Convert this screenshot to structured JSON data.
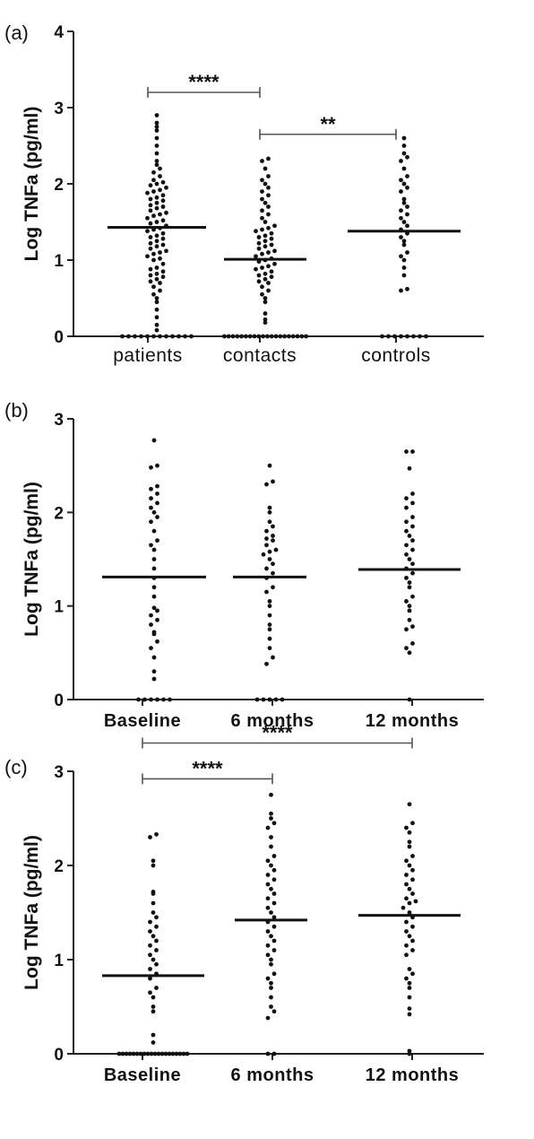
{
  "chart_data": [
    {
      "panel_label": "(a)",
      "type": "scatter",
      "subtype": "dot-plot with median lines",
      "ylabel": "Log TNFa (pg/ml)",
      "xlabel": "",
      "ylim": [
        0,
        4
      ],
      "yticks": [
        "0",
        "1",
        "2",
        "3",
        "4"
      ],
      "categories": [
        "patients",
        "contacts",
        "controls"
      ],
      "medians": [
        1.43,
        1.01,
        1.38
      ],
      "series": [
        {
          "values": [
            0,
            0,
            0,
            0,
            0,
            0,
            0,
            0,
            0,
            0,
            0,
            0,
            0.08,
            0.15,
            0.25,
            0.35,
            0.45,
            0.5,
            0.55,
            0.6,
            0.65,
            0.7,
            0.72,
            0.75,
            0.78,
            0.8,
            0.82,
            0.85,
            0.88,
            0.9,
            0.95,
            1.0,
            1.02,
            1.05,
            1.08,
            1.1,
            1.12,
            1.15,
            1.18,
            1.2,
            1.22,
            1.25,
            1.28,
            1.3,
            1.32,
            1.35,
            1.38,
            1.4,
            1.42,
            1.45,
            1.48,
            1.5,
            1.52,
            1.55,
            1.58,
            1.6,
            1.62,
            1.65,
            1.68,
            1.7,
            1.72,
            1.75,
            1.78,
            1.8,
            1.82,
            1.85,
            1.88,
            1.9,
            1.92,
            1.95,
            1.98,
            2.0,
            2.02,
            2.05,
            2.1,
            2.15,
            2.2,
            2.25,
            2.3,
            2.4,
            2.5,
            2.6,
            2.7,
            2.75,
            2.8,
            2.9
          ]
        },
        {
          "values": [
            0,
            0,
            0,
            0,
            0,
            0,
            0,
            0,
            0,
            0,
            0,
            0,
            0,
            0,
            0,
            0,
            0,
            0,
            0,
            0,
            0.18,
            0.22,
            0.3,
            0.45,
            0.5,
            0.55,
            0.6,
            0.65,
            0.7,
            0.72,
            0.75,
            0.78,
            0.8,
            0.82,
            0.85,
            0.88,
            0.9,
            0.92,
            0.95,
            0.98,
            1.0,
            1.02,
            1.05,
            1.08,
            1.1,
            1.12,
            1.15,
            1.18,
            1.2,
            1.22,
            1.25,
            1.28,
            1.3,
            1.32,
            1.35,
            1.38,
            1.4,
            1.42,
            1.45,
            1.5,
            1.55,
            1.6,
            1.65,
            1.7,
            1.75,
            1.8,
            1.85,
            1.9,
            1.95,
            2.0,
            2.05,
            2.1,
            2.2,
            2.3,
            2.33
          ]
        },
        {
          "values": [
            0,
            0,
            0,
            0,
            0,
            0,
            0,
            0,
            0.6,
            0.62,
            0.8,
            0.9,
            1.0,
            1.05,
            1.1,
            1.2,
            1.25,
            1.3,
            1.35,
            1.4,
            1.45,
            1.5,
            1.55,
            1.6,
            1.65,
            1.7,
            1.75,
            1.8,
            1.9,
            1.95,
            2.0,
            2.05,
            2.1,
            2.2,
            2.3,
            2.35,
            2.4,
            2.5,
            2.6
          ]
        }
      ],
      "significance": [
        {
          "from": 0,
          "to": 1,
          "label": "****",
          "y": 3.2
        },
        {
          "from": 1,
          "to": 2,
          "label": "**",
          "y": 2.65
        }
      ]
    },
    {
      "panel_label": "(b)",
      "type": "scatter",
      "subtype": "dot-plot with median lines",
      "ylabel": "Log TNFa (pg/ml)",
      "xlabel": "",
      "ylim": [
        0,
        3
      ],
      "yticks": [
        "0",
        "1",
        "2",
        "3"
      ],
      "categories": [
        "Baseline",
        "6 months",
        "12 months"
      ],
      "medians": [
        1.31,
        1.31,
        1.39
      ],
      "series": [
        {
          "values": [
            0,
            0,
            0,
            0,
            0,
            0,
            0.22,
            0.3,
            0.45,
            0.55,
            0.62,
            0.7,
            0.72,
            0.8,
            0.85,
            0.9,
            0.95,
            0.98,
            1.1,
            1.2,
            1.3,
            1.4,
            1.5,
            1.6,
            1.65,
            1.7,
            1.8,
            1.9,
            1.95,
            2.0,
            2.05,
            2.1,
            2.15,
            2.2,
            2.25,
            2.28,
            2.48,
            2.5,
            2.77
          ]
        },
        {
          "values": [
            0,
            0,
            0,
            0,
            0,
            0.38,
            0.45,
            0.55,
            0.65,
            0.75,
            0.8,
            0.9,
            1.0,
            1.05,
            1.15,
            1.2,
            1.3,
            1.35,
            1.4,
            1.45,
            1.5,
            1.55,
            1.58,
            1.6,
            1.65,
            1.7,
            1.72,
            1.75,
            1.8,
            1.85,
            1.9,
            2.0,
            2.05,
            2.3,
            2.33,
            2.5
          ]
        },
        {
          "values": [
            0,
            0.5,
            0.55,
            0.6,
            0.75,
            0.78,
            0.85,
            0.95,
            1.0,
            1.05,
            1.1,
            1.2,
            1.25,
            1.3,
            1.35,
            1.4,
            1.45,
            1.5,
            1.55,
            1.6,
            1.65,
            1.7,
            1.75,
            1.8,
            1.85,
            1.9,
            1.95,
            2.05,
            2.1,
            2.15,
            2.2,
            2.47,
            2.65,
            2.65
          ]
        }
      ],
      "significance": []
    },
    {
      "panel_label": "(c)",
      "type": "scatter",
      "subtype": "dot-plot with median lines",
      "ylabel": "Log TNFa (pg/ml)",
      "xlabel": "",
      "ylim": [
        0,
        3
      ],
      "yticks": [
        "0",
        "1",
        "2",
        "3"
      ],
      "categories": [
        "Baseline",
        "6 months",
        "12 months"
      ],
      "medians": [
        0.83,
        1.42,
        1.47
      ],
      "series": [
        {
          "values": [
            0,
            0,
            0,
            0,
            0,
            0,
            0,
            0,
            0,
            0,
            0,
            0,
            0,
            0,
            0,
            0,
            0,
            0,
            0,
            0,
            0.12,
            0.2,
            0.45,
            0.5,
            0.6,
            0.65,
            0.7,
            0.8,
            0.85,
            0.9,
            0.95,
            1.0,
            1.05,
            1.1,
            1.15,
            1.2,
            1.25,
            1.3,
            1.35,
            1.4,
            1.45,
            1.5,
            1.6,
            1.7,
            1.72,
            2.0,
            2.05,
            2.3,
            2.33
          ]
        },
        {
          "values": [
            0,
            0,
            0.38,
            0.45,
            0.5,
            0.6,
            0.7,
            0.75,
            0.8,
            0.85,
            0.95,
            1.0,
            1.05,
            1.1,
            1.15,
            1.2,
            1.25,
            1.3,
            1.35,
            1.4,
            1.45,
            1.5,
            1.55,
            1.6,
            1.65,
            1.7,
            1.75,
            1.8,
            1.85,
            1.9,
            1.95,
            2.0,
            2.05,
            2.1,
            2.2,
            2.3,
            2.4,
            2.45,
            2.5,
            2.55,
            2.75
          ]
        },
        {
          "values": [
            0,
            0.03,
            0.42,
            0.48,
            0.6,
            0.7,
            0.75,
            0.8,
            0.85,
            0.9,
            1.05,
            1.1,
            1.15,
            1.2,
            1.25,
            1.3,
            1.35,
            1.4,
            1.45,
            1.5,
            1.55,
            1.6,
            1.62,
            1.65,
            1.7,
            1.75,
            1.8,
            1.85,
            1.9,
            1.95,
            2.0,
            2.05,
            2.1,
            2.2,
            2.25,
            2.35,
            2.4,
            2.45,
            2.65
          ]
        }
      ],
      "significance": [
        {
          "from": 0,
          "to": 2,
          "label": "****",
          "y": 3.3
        },
        {
          "from": 0,
          "to": 1,
          "label": "****",
          "y": 2.92
        }
      ]
    }
  ]
}
